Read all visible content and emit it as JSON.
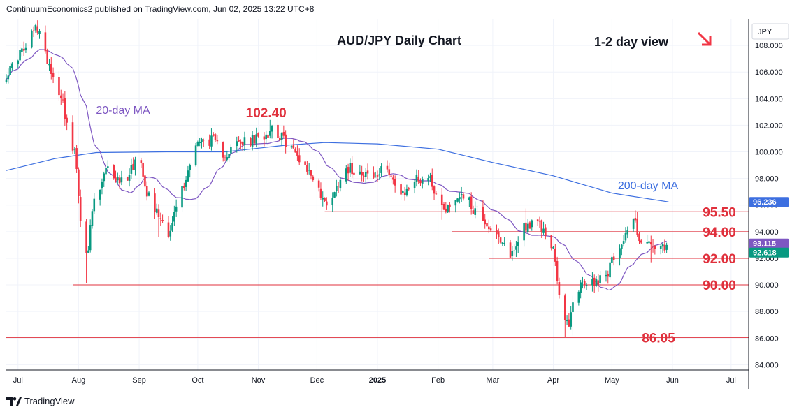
{
  "header": {
    "publisher_line": "ContinuumEconomics2 published on TradingView.com, Jun 02, 2025 13:22 UTC+8"
  },
  "footer": {
    "logo_text": "TradingView"
  },
  "colors": {
    "up": "#089981",
    "down": "#f23645",
    "ma20": "#7e57c2",
    "ma200": "#3d6fe0",
    "level": "#e0303c",
    "grid": "#f0f3fa"
  },
  "chart_data": {
    "type": "candlestick",
    "title": "AUD/JPY Daily Chart",
    "view_label": "1-2 day view",
    "currency_label": "JPY",
    "y_range": [
      83.6,
      110.0
    ],
    "y_ticks": [
      "84.000",
      "86.000",
      "88.000",
      "90.000",
      "92.000",
      "94.000",
      "96.000",
      "98.000",
      "100.000",
      "102.000",
      "104.000",
      "106.000",
      "108.000"
    ],
    "x_ticks": [
      "Jul",
      "Aug",
      "Sep",
      "Oct",
      "Nov",
      "Dec",
      "2025",
      "Feb",
      "Mar",
      "Apr",
      "May",
      "Jun",
      "Jul"
    ],
    "x_tick_dates": [
      "2024-07-01",
      "2024-08-01",
      "2024-09-01",
      "2024-10-01",
      "2024-11-01",
      "2024-12-01",
      "2025-01-01",
      "2025-02-01",
      "2025-03-01",
      "2025-04-01",
      "2025-05-01",
      "2025-06-01",
      "2025-07-01"
    ],
    "x_range": [
      "2024-06-25",
      "2025-07-10"
    ],
    "price_tags": [
      {
        "label": "96.236",
        "value": 96.236,
        "color": "#3d6fe0"
      },
      {
        "label": "93.115",
        "value": 93.115,
        "color": "#7e57c2"
      },
      {
        "label": "92.618",
        "value": 92.618,
        "color": "#089981"
      }
    ],
    "levels": [
      {
        "label": "95.50",
        "value": 95.5,
        "from": "2024-12-05"
      },
      {
        "label": "94.00",
        "value": 94.0,
        "from": "2025-02-08"
      },
      {
        "label": "92.00",
        "value": 92.0,
        "from": "2025-02-27"
      },
      {
        "label": "90.00",
        "value": 90.0,
        "from": "2024-07-29"
      },
      {
        "label": "86.05",
        "value": 86.05,
        "from": "2024-06-25"
      }
    ],
    "annotations": [
      {
        "label": "102.40",
        "date": "2024-11-05",
        "value": 102.4
      }
    ],
    "ma20_label": "20-day MA",
    "ma200_label": "200-day MA",
    "anchors": [
      [
        "2024-06-25",
        105.9
      ],
      [
        "2024-07-03",
        107.5
      ],
      [
        "2024-07-11",
        109.3
      ],
      [
        "2024-07-15",
        107.2
      ],
      [
        "2024-07-22",
        104.6
      ],
      [
        "2024-07-29",
        100.2
      ],
      [
        "2024-08-05",
        92.0
      ],
      [
        "2024-08-09",
        96.2
      ],
      [
        "2024-08-16",
        98.6
      ],
      [
        "2024-08-23",
        97.8
      ],
      [
        "2024-09-01",
        99.5
      ],
      [
        "2024-09-06",
        96.8
      ],
      [
        "2024-09-11",
        95.3
      ],
      [
        "2024-09-16",
        94.0
      ],
      [
        "2024-09-23",
        97.2
      ],
      [
        "2024-09-30",
        100.7
      ],
      [
        "2024-10-07",
        100.9
      ],
      [
        "2024-10-15",
        99.9
      ],
      [
        "2024-10-22",
        100.6
      ],
      [
        "2024-10-31",
        100.9
      ],
      [
        "2024-11-05",
        101.4
      ],
      [
        "2024-11-08",
        101.9
      ],
      [
        "2024-11-15",
        100.8
      ],
      [
        "2024-11-22",
        99.6
      ],
      [
        "2024-11-29",
        98.2
      ],
      [
        "2024-12-05",
        96.2
      ],
      [
        "2024-12-09",
        96.8
      ],
      [
        "2024-12-15",
        98.8
      ],
      [
        "2024-12-24",
        98.6
      ],
      [
        "2024-12-30",
        98.0
      ],
      [
        "2025-01-06",
        98.8
      ],
      [
        "2025-01-13",
        96.6
      ],
      [
        "2025-01-20",
        97.9
      ],
      [
        "2025-01-27",
        98.1
      ],
      [
        "2025-02-03",
        95.9
      ],
      [
        "2025-02-07",
        95.9
      ],
      [
        "2025-02-13",
        96.9
      ],
      [
        "2025-02-20",
        95.7
      ],
      [
        "2025-03-01",
        94.2
      ],
      [
        "2025-03-05",
        93.0
      ],
      [
        "2025-03-11",
        92.4
      ],
      [
        "2025-03-17",
        94.5
      ],
      [
        "2025-03-24",
        94.5
      ],
      [
        "2025-03-31",
        93.2
      ],
      [
        "2025-04-04",
        89.5
      ],
      [
        "2025-04-08",
        87.0
      ],
      [
        "2025-04-14",
        89.9
      ],
      [
        "2025-04-21",
        90.2
      ],
      [
        "2025-04-28",
        90.9
      ],
      [
        "2025-05-05",
        93.1
      ],
      [
        "2025-05-12",
        94.9
      ],
      [
        "2025-05-16",
        93.3
      ],
      [
        "2025-05-23",
        92.8
      ],
      [
        "2025-05-29",
        92.6
      ]
    ],
    "extremes": [
      [
        "2024-07-11",
        109.38,
        "high"
      ],
      [
        "2024-08-05",
        90.15,
        "low"
      ],
      [
        "2024-09-11",
        93.6,
        "low"
      ],
      [
        "2024-11-07",
        102.4,
        "high"
      ],
      [
        "2024-12-09",
        95.5,
        "low"
      ],
      [
        "2025-01-07",
        99.2,
        "high"
      ],
      [
        "2025-02-03",
        94.9,
        "low"
      ],
      [
        "2025-03-11",
        91.8,
        "low"
      ],
      [
        "2025-03-18",
        95.75,
        "high"
      ],
      [
        "2025-04-07",
        86.05,
        "low"
      ],
      [
        "2025-04-11",
        86.2,
        "low"
      ],
      [
        "2025-05-13",
        95.6,
        "high"
      ],
      [
        "2025-05-21",
        91.7,
        "low"
      ]
    ],
    "ma200": [
      [
        "2024-06-25",
        98.6
      ],
      [
        "2024-07-20",
        99.5
      ],
      [
        "2024-08-10",
        99.95
      ],
      [
        "2024-09-15",
        100.0
      ],
      [
        "2024-10-15",
        100.0
      ],
      [
        "2024-11-15",
        100.5
      ],
      [
        "2024-12-05",
        100.7
      ],
      [
        "2025-01-01",
        100.6
      ],
      [
        "2025-02-01",
        100.2
      ],
      [
        "2025-03-01",
        99.2
      ],
      [
        "2025-04-01",
        98.2
      ],
      [
        "2025-05-01",
        96.9
      ],
      [
        "2025-05-30",
        96.24
      ]
    ]
  }
}
